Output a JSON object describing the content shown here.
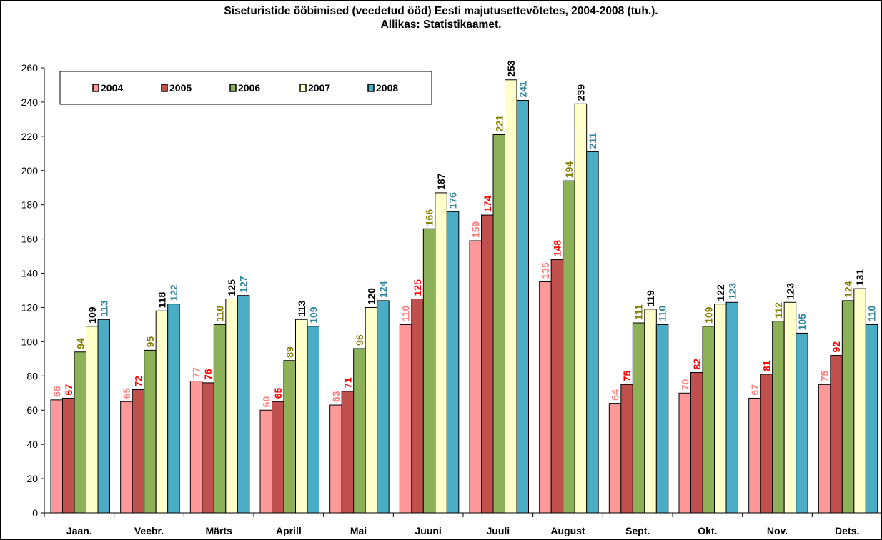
{
  "chart_data": {
    "type": "bar",
    "title_line1": "Siseturistide ööbimised (veedetud ööd) Eesti majutusettevõtetes, 2004-2008 (tuh.).",
    "title_line2": "Allikas: Statistikaamet.",
    "categories": [
      "Jaan.",
      "Veebr.",
      "Märts",
      "Aprill",
      "Mai",
      "Juuni",
      "Juuli",
      "August",
      "Sept.",
      "Okt.",
      "Nov.",
      "Dets."
    ],
    "ylim": [
      0,
      260
    ],
    "yticks": [
      "0",
      "20",
      "40",
      "60",
      "80",
      "100",
      "120",
      "140",
      "160",
      "180",
      "200",
      "220",
      "240",
      "260"
    ],
    "grid": false,
    "legend_position": "top-left",
    "series": [
      {
        "name": "2004",
        "color": "#ff9999",
        "label_color": "#ff8080",
        "values": [
          66,
          65,
          77,
          60,
          63,
          110,
          159,
          135,
          64,
          70,
          67,
          75
        ]
      },
      {
        "name": "2005",
        "color": "#c0504d",
        "label_color": "#ff0000",
        "values": [
          67,
          72,
          76,
          65,
          71,
          125,
          174,
          148,
          75,
          82,
          81,
          92
        ]
      },
      {
        "name": "2006",
        "color": "#8db159",
        "label_color": "#808000",
        "values": [
          94,
          95,
          110,
          89,
          96,
          166,
          221,
          194,
          111,
          109,
          112,
          124
        ]
      },
      {
        "name": "2007",
        "color": "#ffffcc",
        "label_color": "#000000",
        "values": [
          109,
          118,
          125,
          113,
          120,
          187,
          253,
          239,
          119,
          122,
          123,
          131
        ]
      },
      {
        "name": "2008",
        "color": "#4bacc6",
        "label_color": "#31859c",
        "values": [
          113,
          122,
          127,
          109,
          124,
          176,
          241,
          211,
          110,
          123,
          105,
          110
        ]
      }
    ]
  }
}
